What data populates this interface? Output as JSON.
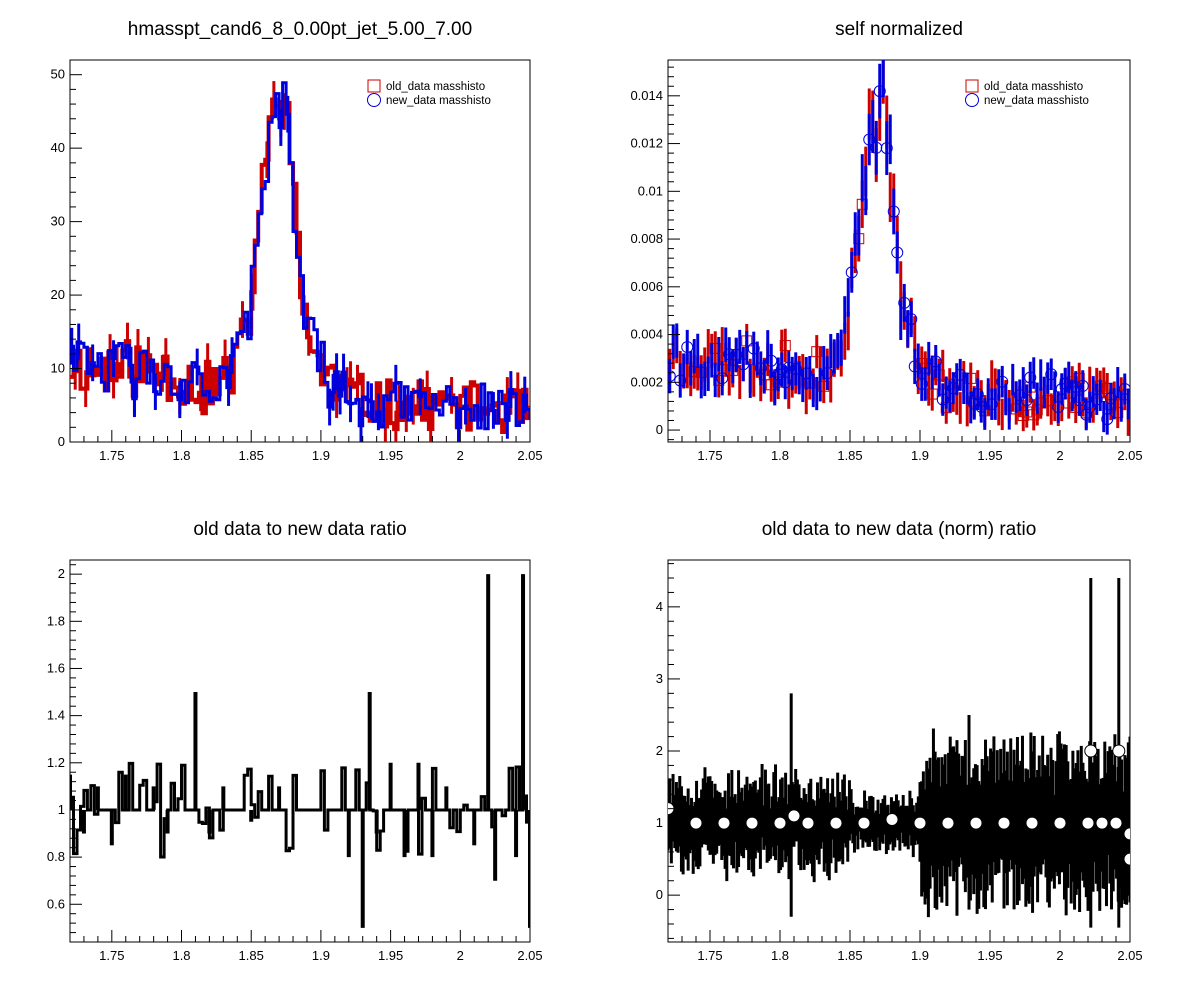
{
  "colors": {
    "old": "#cc0000",
    "new": "#0000dd",
    "ratio": "#000000",
    "frame": "#000000"
  },
  "chart_data": [
    {
      "type": "line",
      "title": "hmasspt_cand6_8_0.00pt_jet_5.00_7.00",
      "xlim": [
        1.72,
        2.05
      ],
      "ylim": [
        0,
        52
      ],
      "xticks": [
        "1.75",
        "1.8",
        "1.85",
        "1.9",
        "1.95",
        "2",
        "2.05"
      ],
      "yticks": [
        "0",
        "10",
        "20",
        "30",
        "40",
        "50"
      ],
      "legend": [
        "old_data masshisto",
        "new_data masshisto"
      ],
      "legend_markers": [
        "square-open",
        "circle-open"
      ],
      "series": [
        {
          "name": "old_data masshisto",
          "style": "step",
          "x": [
            1.72,
            1.74,
            1.76,
            1.78,
            1.8,
            1.82,
            1.84,
            1.85,
            1.855,
            1.86,
            1.865,
            1.87,
            1.875,
            1.88,
            1.885,
            1.89,
            1.9,
            1.92,
            1.95,
            2.0,
            2.05
          ],
          "y": [
            11,
            10,
            10,
            10,
            9,
            7,
            10,
            19,
            30,
            36,
            44,
            47,
            49,
            35,
            22,
            16,
            10,
            6,
            5,
            5,
            4
          ]
        },
        {
          "name": "new_data masshisto",
          "style": "step",
          "x": [
            1.72,
            1.74,
            1.76,
            1.78,
            1.8,
            1.82,
            1.84,
            1.85,
            1.855,
            1.86,
            1.865,
            1.87,
            1.875,
            1.88,
            1.885,
            1.89,
            1.9,
            1.92,
            1.95,
            2.0,
            2.05
          ],
          "y": [
            10,
            10,
            10,
            9,
            9,
            7,
            10,
            19,
            29,
            35,
            43,
            46,
            49,
            34,
            21,
            15,
            10,
            6,
            5,
            5,
            4
          ]
        }
      ]
    },
    {
      "type": "scatter",
      "title": "self normalized",
      "xlim": [
        1.72,
        2.05
      ],
      "ylim": [
        -0.0005,
        0.0155
      ],
      "xticks": [
        "1.75",
        "1.8",
        "1.85",
        "1.9",
        "1.95",
        "2",
        "2.05"
      ],
      "yticks": [
        "0",
        "0.002",
        "0.004",
        "0.006",
        "0.008",
        "0.01",
        "0.012",
        "0.014"
      ],
      "legend": [
        "old_data masshisto",
        "new_data masshisto"
      ],
      "legend_markers": [
        "square-open",
        "circle-open"
      ],
      "series": [
        {
          "name": "old_data masshisto",
          "x": [
            1.72,
            1.74,
            1.76,
            1.78,
            1.8,
            1.82,
            1.84,
            1.85,
            1.855,
            1.86,
            1.865,
            1.87,
            1.875,
            1.88,
            1.885,
            1.89,
            1.9,
            1.92,
            1.95,
            2.0,
            2.05
          ],
          "y": [
            0.0032,
            0.0029,
            0.0029,
            0.0028,
            0.0027,
            0.0021,
            0.0029,
            0.0055,
            0.0085,
            0.0102,
            0.0125,
            0.0133,
            0.014,
            0.01,
            0.0063,
            0.0046,
            0.0029,
            0.0017,
            0.0014,
            0.0014,
            0.0011
          ]
        },
        {
          "name": "new_data masshisto",
          "x": [
            1.72,
            1.74,
            1.76,
            1.78,
            1.8,
            1.82,
            1.84,
            1.85,
            1.855,
            1.86,
            1.865,
            1.87,
            1.875,
            1.88,
            1.885,
            1.89,
            1.9,
            1.92,
            1.95,
            2.0,
            2.05
          ],
          "y": [
            0.003,
            0.003,
            0.003,
            0.0027,
            0.0027,
            0.0021,
            0.003,
            0.0056,
            0.0085,
            0.0102,
            0.0125,
            0.0134,
            0.0142,
            0.0099,
            0.0061,
            0.0044,
            0.0029,
            0.0018,
            0.0015,
            0.0015,
            0.0012
          ]
        }
      ]
    },
    {
      "type": "line",
      "title": "old data to new data ratio",
      "xlim": [
        1.72,
        2.05
      ],
      "ylim": [
        0.44,
        2.06
      ],
      "xticks": [
        "1.75",
        "1.8",
        "1.85",
        "1.9",
        "1.95",
        "2",
        "2.05"
      ],
      "yticks": [
        "0.6",
        "0.8",
        "1",
        "1.2",
        "1.4",
        "1.6",
        "1.8",
        "2"
      ],
      "series": [
        {
          "name": "",
          "style": "step",
          "x": [
            1.72,
            1.73,
            1.74,
            1.75,
            1.76,
            1.77,
            1.78,
            1.79,
            1.8,
            1.81,
            1.82,
            1.83,
            1.84,
            1.85,
            1.86,
            1.87,
            1.88,
            1.89,
            1.9,
            1.91,
            1.92,
            1.93,
            1.935,
            1.94,
            1.95,
            1.96,
            1.97,
            1.98,
            1.99,
            2.0,
            2.01,
            2.02,
            2.025,
            2.03,
            2.04,
            2.045,
            2.05
          ],
          "y": [
            1.15,
            0.9,
            1.1,
            0.85,
            1.15,
            1.0,
            1.1,
            0.9,
            1.0,
            1.5,
            0.9,
            1.1,
            1.0,
            0.95,
            1.0,
            1.1,
            1.0,
            1.0,
            1.0,
            1.0,
            0.8,
            0.5,
            1.5,
            0.9,
            1.2,
            0.8,
            1.2,
            0.8,
            1.1,
            1.0,
            0.85,
            2.0,
            0.7,
            1.0,
            0.8,
            2.0,
            0.5
          ]
        }
      ]
    },
    {
      "type": "scatter",
      "title": "old data to new data (norm) ratio",
      "xlim": [
        1.72,
        2.05
      ],
      "ylim": [
        -0.65,
        4.65
      ],
      "xticks": [
        "1.75",
        "1.8",
        "1.85",
        "1.9",
        "1.95",
        "2",
        "2.05"
      ],
      "yticks": [
        "0",
        "1",
        "2",
        "3",
        "4"
      ],
      "series": [
        {
          "name": "",
          "x": [
            1.72,
            1.74,
            1.76,
            1.78,
            1.8,
            1.81,
            1.82,
            1.84,
            1.86,
            1.88,
            1.9,
            1.92,
            1.94,
            1.96,
            1.98,
            2.0,
            2.02,
            2.022,
            2.03,
            2.04,
            2.042,
            2.05,
            2.05
          ],
          "y": [
            1.2,
            1.0,
            1.0,
            1.0,
            1.0,
            1.1,
            1.0,
            1.0,
            1.0,
            1.05,
            1.0,
            1.0,
            1.0,
            1.0,
            1.0,
            1.0,
            1.0,
            2.0,
            1.0,
            1.0,
            2.0,
            0.85,
            0.5
          ]
        }
      ]
    }
  ]
}
